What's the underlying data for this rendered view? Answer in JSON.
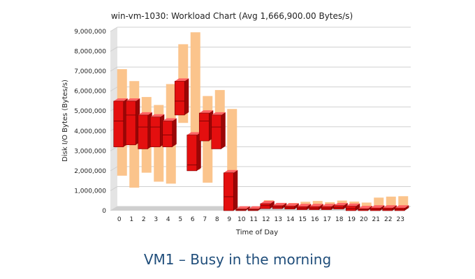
{
  "caption": "VM1 – Busy in the morning",
  "chart_data": {
    "type": "bar",
    "title": "win-vm-1030: Workload Chart (Avg 1,666,900.00 Bytes/s)",
    "xlabel": "Time of Day",
    "ylabel": "Disk I/O Bytes (Bytes/s)",
    "ylim": [
      0,
      9000000
    ],
    "yticks": [
      "0",
      "1,000,000",
      "2,000,000",
      "3,000,000",
      "4,000,000",
      "5,000,000",
      "6,000,000",
      "7,000,000",
      "8,000,000",
      "9,000,000"
    ],
    "categories": [
      "0",
      "1",
      "2",
      "3",
      "4",
      "5",
      "6",
      "7",
      "8",
      "9",
      "10",
      "11",
      "12",
      "13",
      "14",
      "15",
      "16",
      "17",
      "18",
      "19",
      "20",
      "21",
      "22",
      "23"
    ],
    "range_low": [
      1650000,
      1050000,
      1800000,
      1350000,
      1250000,
      4300000,
      1950000,
      1300000,
      3300000,
      0,
      0,
      0,
      80000,
      100000,
      80000,
      60000,
      60000,
      60000,
      60000,
      60000,
      60000,
      60000,
      60000,
      60000
    ],
    "range_high": [
      7000000,
      6400000,
      5600000,
      5200000,
      6250000,
      8250000,
      8850000,
      5650000,
      5950000,
      5000000,
      50000,
      50000,
      420000,
      280000,
      280000,
      340000,
      380000,
      320000,
      400000,
      350000,
      300000,
      550000,
      600000,
      620000
    ],
    "box_low": [
      3200000,
      3300000,
      3100000,
      3200000,
      3200000,
      4800000,
      2000000,
      3500000,
      3100000,
      0,
      0,
      0,
      100000,
      100000,
      80000,
      50000,
      50000,
      50000,
      80000,
      0,
      0,
      0,
      0,
      0
    ],
    "box_high": [
      5500000,
      5500000,
      4800000,
      4700000,
      4500000,
      6500000,
      3800000,
      4900000,
      4800000,
      1900000,
      80000,
      80000,
      350000,
      250000,
      230000,
      200000,
      200000,
      200000,
      250000,
      220000,
      100000,
      130000,
      130000,
      130000
    ],
    "box_mid": [
      4500000,
      4800000,
      4200000,
      4200000,
      3800000,
      5500000,
      2300000,
      4500000,
      4200000,
      700000,
      40000,
      40000,
      250000,
      180000,
      150000,
      120000,
      120000,
      120000,
      150000,
      100000,
      50000,
      60000,
      60000,
      60000
    ],
    "colors": {
      "range": "#fbc48c",
      "box_front": "#e40f0f",
      "box_side": "#9a0606",
      "box_top": "#ff6464",
      "grid": "#d0d0d0",
      "wall": "#e4e4e4",
      "floor": "#cfcfcf"
    }
  }
}
